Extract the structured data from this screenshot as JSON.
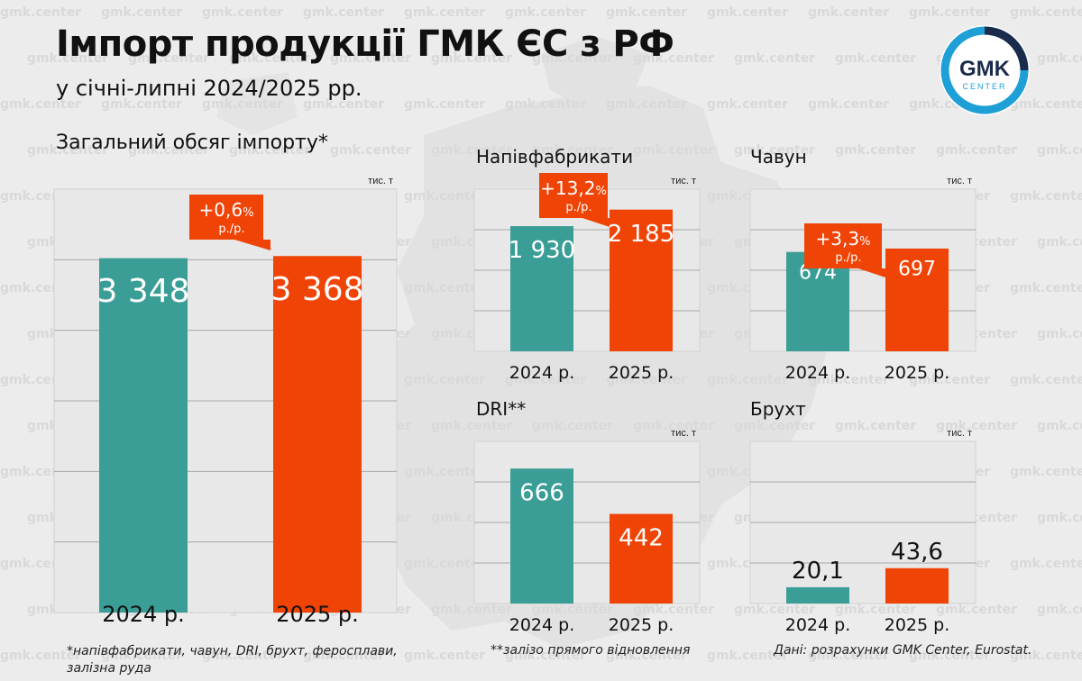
{
  "header": {
    "title": "Імпорт продукції ГМК ЄС з РФ",
    "subtitle": "у січні-липні 2024/2025 рр."
  },
  "logo": {
    "line1": "GMK",
    "line2": "CENTER"
  },
  "watermark_text": "gmk.center",
  "colors": {
    "bar_2024": "#3a9e97",
    "bar_2025": "#f04406",
    "panel": "#e8e8e8",
    "grid": "#a8a8a8",
    "logo_ring": "#1ea0d6",
    "logo_fill": "#1a2b4c"
  },
  "chart_data": [
    {
      "id": "total",
      "type": "bar",
      "title": "Загальний обсяг імпорту*",
      "unit": "тис. т",
      "categories": [
        "2024 р.",
        "2025 р."
      ],
      "values": [
        3348,
        3368
      ],
      "value_labels": [
        "3 348",
        "3 368"
      ],
      "change": {
        "value": "+0,6",
        "suffix": "%",
        "unit": "р./р."
      },
      "ylim": [
        0,
        4000
      ],
      "grid": true
    },
    {
      "id": "semis",
      "type": "bar",
      "title": "Напівфабрикати",
      "unit": "тис. т",
      "categories": [
        "2024 р.",
        "2025 р."
      ],
      "values": [
        1930,
        2185
      ],
      "value_labels": [
        "1 930",
        "2 185"
      ],
      "change": {
        "value": "+13,2",
        "suffix": "%",
        "unit": "р./р."
      },
      "ylim": [
        0,
        2500
      ],
      "grid": true
    },
    {
      "id": "pig-iron",
      "type": "bar",
      "title": "Чавун",
      "unit": "тис. т",
      "categories": [
        "2024 р.",
        "2025 р."
      ],
      "values": [
        674,
        697
      ],
      "value_labels": [
        "674",
        "697"
      ],
      "change": {
        "value": "+3,3",
        "suffix": "%",
        "unit": "р./р."
      },
      "ylim": [
        0,
        1100
      ],
      "grid": true
    },
    {
      "id": "dri",
      "type": "bar",
      "title": "DRI**",
      "unit": "тис. т",
      "categories": [
        "2024 р.",
        "2025 р."
      ],
      "values": [
        666,
        442
      ],
      "value_labels": [
        "666",
        "442"
      ],
      "change": null,
      "ylim": [
        0,
        800
      ],
      "grid": true
    },
    {
      "id": "scrap",
      "type": "bar",
      "title": "Брухт",
      "unit": "тис. т",
      "categories": [
        "2024 р.",
        "2025 р."
      ],
      "values": [
        20.1,
        43.6
      ],
      "value_labels": [
        "20,1",
        "43,6"
      ],
      "change": null,
      "ylim": [
        0,
        200
      ],
      "grid": true
    }
  ],
  "footnotes": {
    "note1": "*напівфабрикати, чавун, DRI, брухт, феросплави,",
    "note1b": "залізна руда",
    "note2": "**залізо прямого відновлення",
    "source": "Дані: розрахунки GMK Center, Eurostat."
  }
}
